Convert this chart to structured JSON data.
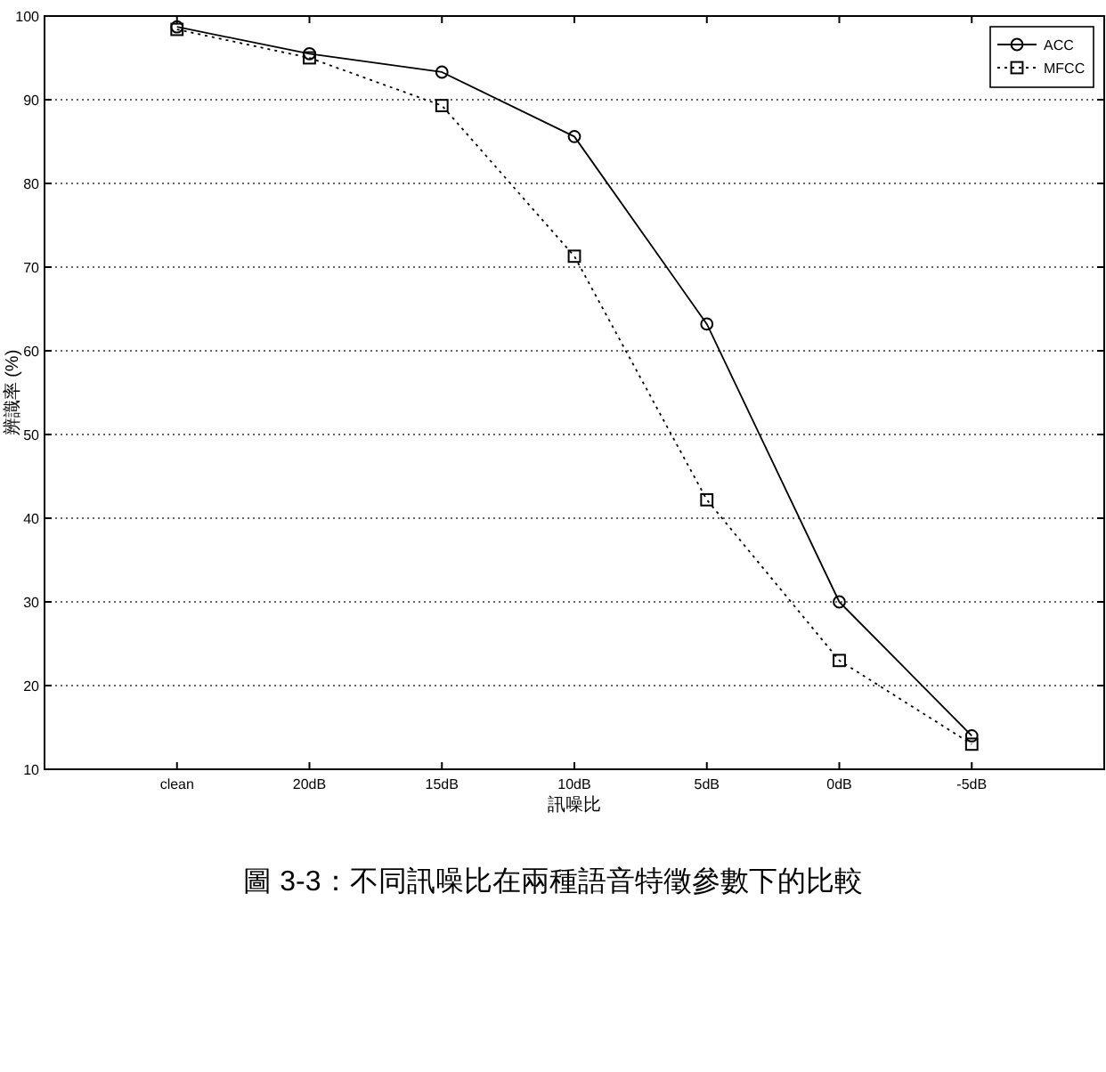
{
  "chart_data": {
    "type": "line",
    "xlabel": "訊噪比",
    "ylabel": "辨識率 (%)",
    "categories": [
      "clean",
      "20dB",
      "15dB",
      "10dB",
      "5dB",
      "0dB",
      "-5dB"
    ],
    "series": [
      {
        "name": "ACC",
        "color": "#000000",
        "marker": "circle",
        "line_style": "solid",
        "values": [
          98.7,
          95.5,
          93.3,
          85.6,
          63.2,
          30,
          14
        ]
      },
      {
        "name": "MFCC",
        "color": "#000000",
        "marker": "square",
        "line_style": "dotted",
        "values": [
          98.4,
          95,
          89.3,
          71.3,
          42.2,
          23,
          13
        ]
      }
    ],
    "ylim": [
      10,
      100
    ],
    "yticks": [
      10,
      20,
      30,
      40,
      50,
      60,
      70,
      80,
      90,
      100
    ],
    "grid": "y",
    "legend": "top right",
    "annotations": [
      "圖 3-3：不同訊噪比在兩種語音特徵參數下的比較"
    ]
  }
}
